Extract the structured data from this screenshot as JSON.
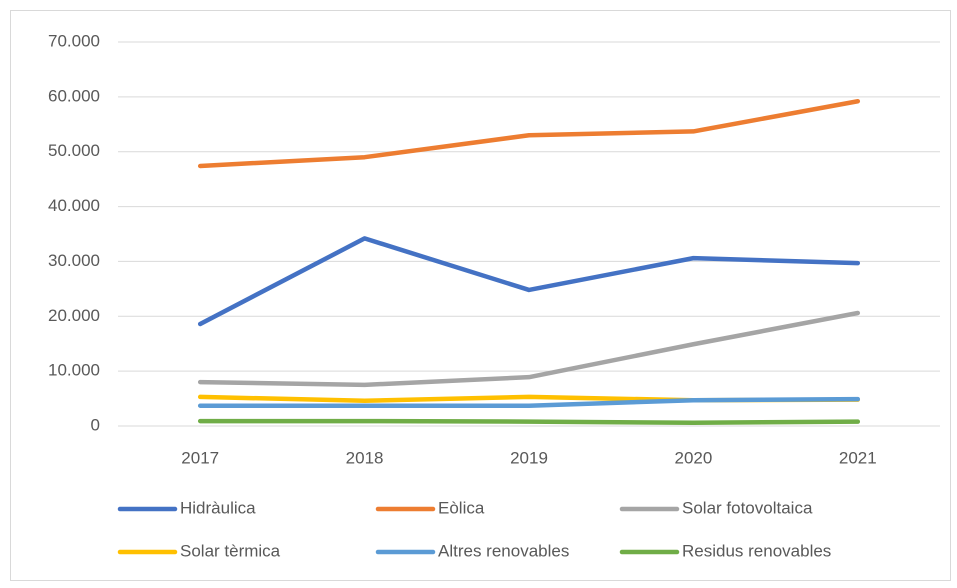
{
  "chart_data": {
    "type": "line",
    "categories": [
      "2017",
      "2018",
      "2019",
      "2020",
      "2021"
    ],
    "series": [
      {
        "name": "Hidràulica",
        "color": "#4472c4",
        "values": [
          18600,
          34200,
          24800,
          30600,
          29700
        ]
      },
      {
        "name": "Eòlica",
        "color": "#ed7d31",
        "values": [
          47400,
          49000,
          53000,
          53700,
          59200
        ]
      },
      {
        "name": "Solar fotovoltaica",
        "color": "#a5a5a5",
        "values": [
          8000,
          7500,
          8900,
          14900,
          20600
        ]
      },
      {
        "name": "Solar tèrmica",
        "color": "#ffc000",
        "values": [
          5300,
          4600,
          5300,
          4700,
          4800
        ]
      },
      {
        "name": "Altres renovables",
        "color": "#5b9bd5",
        "values": [
          3700,
          3700,
          3700,
          4700,
          4900
        ]
      },
      {
        "name": "Residus renovables",
        "color": "#70ad47",
        "values": [
          900,
          900,
          800,
          600,
          800
        ]
      }
    ],
    "ylim": [
      0,
      70000
    ],
    "yticks": [
      0,
      {
        "value": 10000,
        "label": "10.000"
      },
      {
        "value": 20000,
        "label": "20.000"
      },
      {
        "value": 30000,
        "label": "30.000"
      },
      {
        "value": 40000,
        "label": "40.000"
      },
      {
        "value": 50000,
        "label": "50.000"
      },
      {
        "value": 60000,
        "label": "60.000"
      },
      {
        "value": 70000,
        "label": "70.000"
      }
    ],
    "grid": true,
    "legend": "bottom"
  }
}
